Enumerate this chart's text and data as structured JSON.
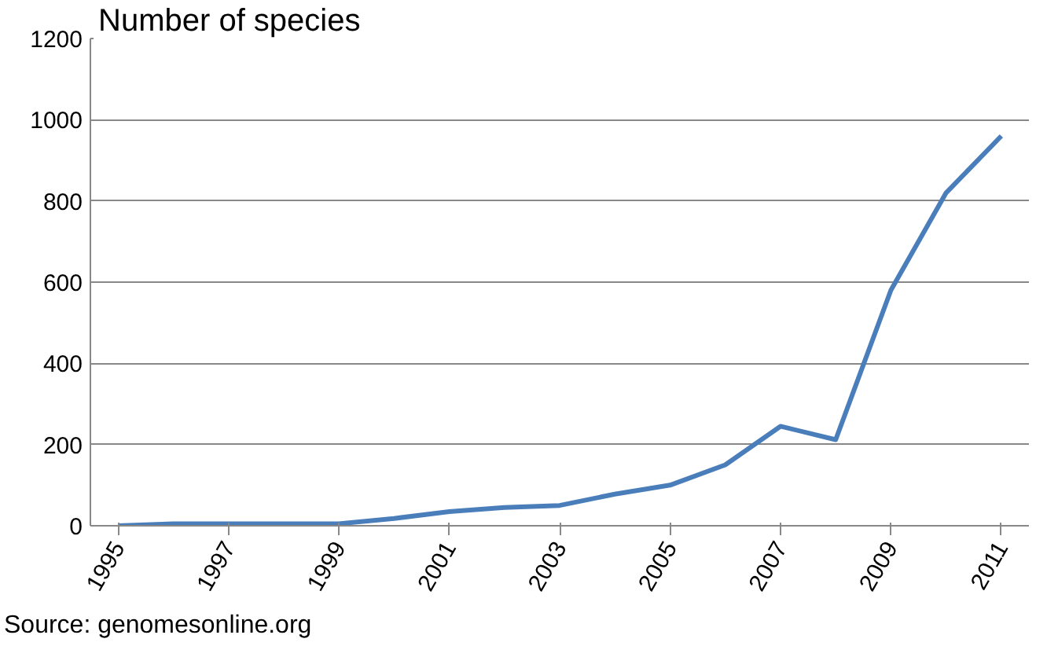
{
  "chart_data": {
    "type": "line",
    "ylabel": "Number of species",
    "categories": [
      "1995",
      null,
      "1997",
      null,
      "1999",
      null,
      "2001",
      null,
      "2003",
      null,
      "2005",
      null,
      "2007",
      null,
      "2009",
      null,
      "2011"
    ],
    "series": [
      {
        "color": "#4a7ebb",
        "values": [
          0,
          5,
          5,
          5,
          5,
          18,
          35,
          45,
          50,
          78,
          100,
          150,
          245,
          212,
          580,
          820,
          960
        ]
      }
    ],
    "ylim": [
      0,
      1200
    ],
    "yticks": [
      0,
      200,
      400,
      600,
      800,
      1000,
      1200
    ],
    "grid": "y",
    "annotations": [
      "Source: genomesonline.org"
    ]
  }
}
